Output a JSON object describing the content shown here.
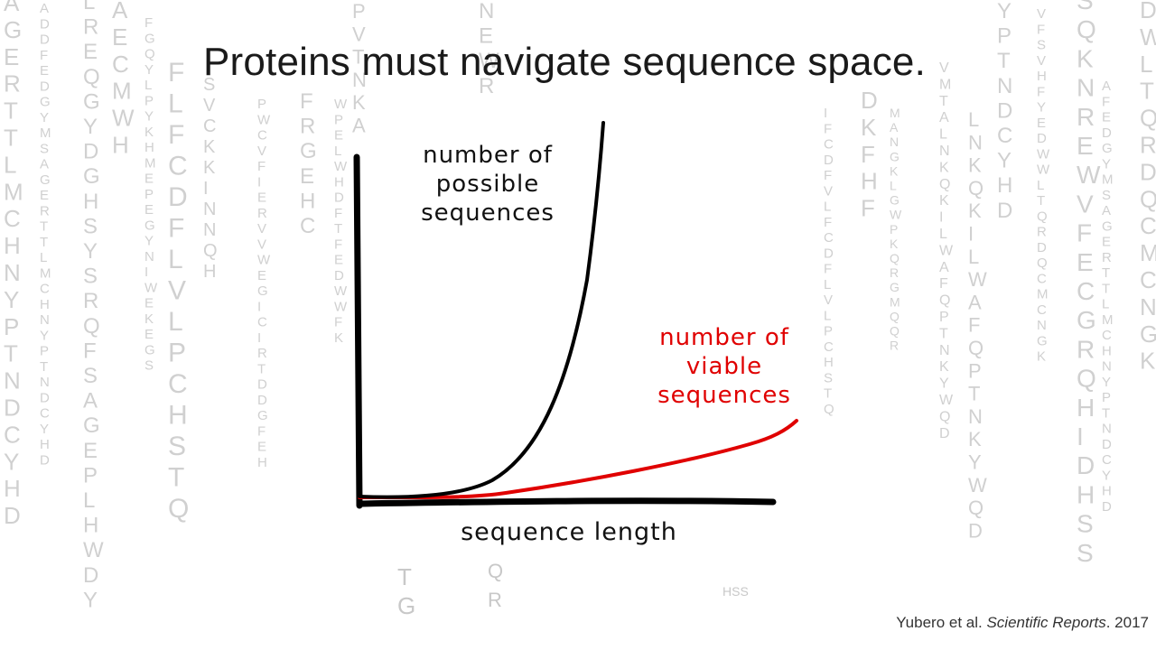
{
  "slide": {
    "title": "Proteins must navigate sequence space.",
    "citation": {
      "authors": "Yubero et al. ",
      "journal": "Scientific Reports",
      "year": ". 2017"
    }
  },
  "diagram": {
    "curves": [
      {
        "label": "number of possible sequences",
        "color": "#111111",
        "growth": "exponential"
      },
      {
        "label": "number of viable sequences",
        "color": "#e00000",
        "growth": "slow"
      }
    ],
    "x_axis_label": "sequence length",
    "labels": {
      "possible": "number of\npossible\nsequences",
      "viable": "number of\nviable\nsequences"
    }
  },
  "background_letters": {
    "color": "#c8c8c8",
    "columns": [
      "AGERTTLMCHNYPTNDCYHD",
      "ADDFEDGYMSAGERTTLMCHNYPTNDCYHD",
      "LREQGYDGHSYSRQFSAGEPLHWDY",
      "AECMWH",
      "FGQYLPYKHMEPEGYNIWEKEGS",
      "FLFCDFLVLPCHSTQ",
      "SVCKKINNQH",
      "PWCVFIERVVWEGICIRTDDGFEH",
      "FRGEHC",
      "WPELWHDFTFEDWWFK",
      "PVTNKA",
      "NEWR",
      "IFCDFVLFCDFLVLPCHSTQ",
      "DKFHF",
      "MANGKLGWPKQRGMQQR",
      "VMTALNKQKILWAFQPTNKYWQD",
      "LNKQKILWAFQPTNKYWQD",
      "YPTNDCYHD",
      "VFSVHFYEDWWLTQRDQCMCNGK",
      "SQKNREWVFECGRQHIDHSS",
      "AFEDGYMSAGERTTLMCHNYPTNDCYHD",
      "DWLTQRDQCMCNGK"
    ],
    "bottom_letters": [
      "T",
      "G",
      "Q",
      "R",
      "HSS"
    ]
  }
}
